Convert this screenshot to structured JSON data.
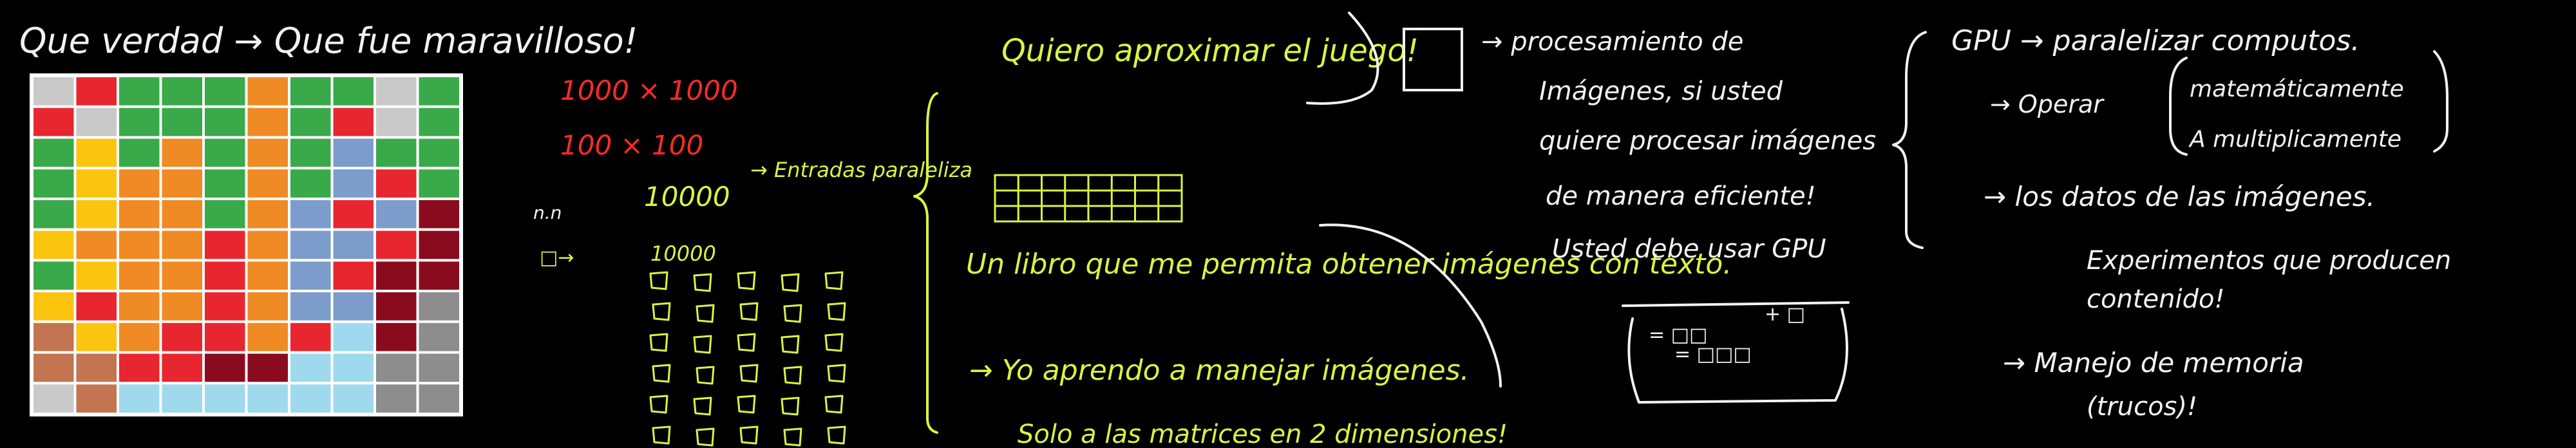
{
  "header": {
    "line": "Que verdad → Que fue maravilloso!"
  },
  "grid": {
    "rows": 11,
    "cols": 10,
    "colors": {
      "G": "#3aa94a",
      "R": "#e8262f",
      "O": "#f08a24",
      "Y": "#fbc40f",
      "B": "#7c9dcc",
      "D": "#8b0b1e",
      "N": "#c37450",
      "C": "#9fd9ee",
      "S": "#8d8d8d",
      "L": "#c9c9c9"
    },
    "cells": [
      [
        "L",
        "R",
        "G",
        "G",
        "G",
        "O",
        "G",
        "G",
        "L",
        "G"
      ],
      [
        "R",
        "L",
        "G",
        "G",
        "G",
        "O",
        "G",
        "R",
        "L",
        "G"
      ],
      [
        "G",
        "Y",
        "G",
        "O",
        "G",
        "O",
        "G",
        "B",
        "G",
        "G"
      ],
      [
        "G",
        "Y",
        "O",
        "O",
        "G",
        "O",
        "G",
        "B",
        "R",
        "G"
      ],
      [
        "G",
        "Y",
        "O",
        "O",
        "G",
        "O",
        "B",
        "R",
        "B",
        "D"
      ],
      [
        "Y",
        "O",
        "O",
        "O",
        "R",
        "O",
        "B",
        "B",
        "R",
        "D"
      ],
      [
        "G",
        "Y",
        "O",
        "O",
        "R",
        "O",
        "B",
        "R",
        "D",
        "D"
      ],
      [
        "Y",
        "R",
        "O",
        "O",
        "R",
        "O",
        "B",
        "B",
        "D",
        "S"
      ],
      [
        "N",
        "Y",
        "O",
        "R",
        "R",
        "O",
        "R",
        "C",
        "D",
        "S"
      ],
      [
        "N",
        "N",
        "R",
        "R",
        "D",
        "D",
        "C",
        "C",
        "S",
        "S"
      ],
      [
        "L",
        "N",
        "C",
        "C",
        "C",
        "C",
        "C",
        "C",
        "S",
        "S"
      ]
    ]
  },
  "dimensions": {
    "d1000": "1000 × 1000",
    "d100": "100 × 100",
    "nn": "n.n",
    "small": "□→",
    "n10000_a": "10000",
    "paralelizar": "→ Entradas paraleliza",
    "n10000_b": "10000"
  },
  "middle": {
    "quiero": "Quiero aproximar el juego!",
    "libro": "Un libro que me permita obtener imágenes con texto.",
    "aprendo": "→ Yo aprendo a manejar imágenes.",
    "solo": "Solo a las matrices en 2 dimensiones!"
  },
  "processing": {
    "text": [
      "→ procesamiento de",
      "Imágenes, si usted",
      "quiere procesar imágenes",
      "de manera eficiente!",
      "Usted debe usar GPU"
    ],
    "box_line1_left": "= □□",
    "box_line1_right": "+ □",
    "box_line2": "= □□□"
  },
  "gpu": {
    "title": "GPU → paralelizar computos.",
    "operar": "→ Operar",
    "mat1": "matemáticamente",
    "mat2": "A multiplicamente",
    "datos": "→ los datos de las imágenes.",
    "exp1": "Experimentos que producen",
    "exp2": "contenido!",
    "mem1": "→ Manejo de memoria",
    "mem2": "(trucos)!"
  }
}
